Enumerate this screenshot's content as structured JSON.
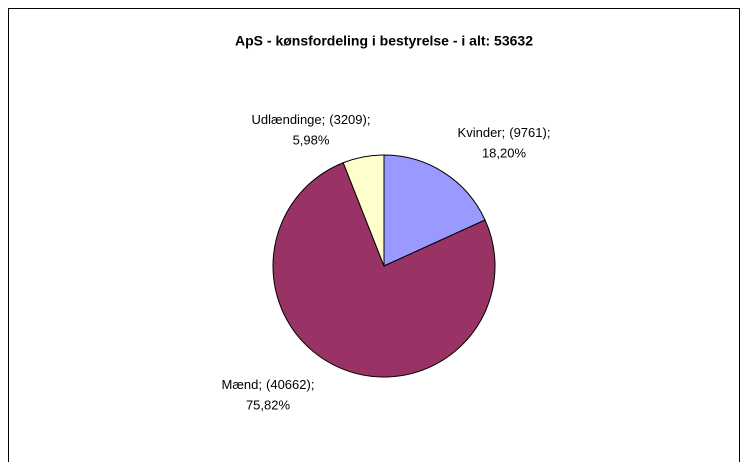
{
  "chart_data": {
    "type": "pie",
    "title": "ApS - kønsfordeling i bestyrelse - i alt: 53632",
    "categories": [
      "Kvinder",
      "Mænd",
      "Udlændinge"
    ],
    "values": [
      9761,
      40662,
      3209
    ],
    "value_labels": [
      "(9761)",
      "(40662)",
      "(3209)"
    ],
    "percents": [
      18.2,
      75.82,
      5.98
    ],
    "percent_labels": [
      "18,20%",
      "75,82%",
      "5,98%"
    ],
    "separator": ";",
    "colors": [
      "#9999ff",
      "#993366",
      "#ffffcc"
    ]
  }
}
